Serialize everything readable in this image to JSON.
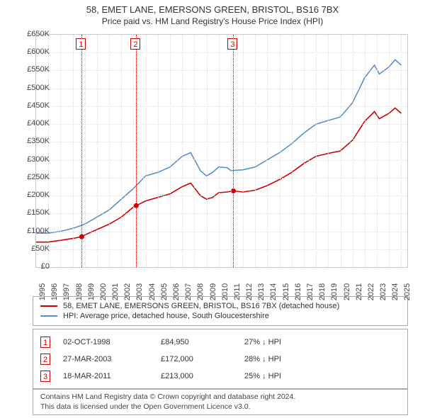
{
  "title_line1": "58, EMET LANE, EMERSONS GREEN, BRISTOL, BS16 7BX",
  "title_line2": "Price paid vs. HM Land Registry's House Price Index (HPI)",
  "chart": {
    "type": "line",
    "background_color": "#ffffff",
    "grid_color": "#dcdcdc",
    "border_color": "#c8c8c8",
    "x": {
      "min": 1995,
      "max": 2025.5,
      "ticks": [
        1995,
        1996,
        1997,
        1998,
        1999,
        2000,
        2001,
        2002,
        2003,
        2004,
        2005,
        2006,
        2007,
        2008,
        2009,
        2010,
        2011,
        2012,
        2013,
        2014,
        2015,
        2016,
        2017,
        2018,
        2019,
        2020,
        2021,
        2022,
        2023,
        2024,
        2025
      ],
      "label_fontsize": 11
    },
    "y": {
      "min": 0,
      "max": 650000,
      "tick_step": 50000,
      "ticks_labels": [
        "£0",
        "£50K",
        "£100K",
        "£150K",
        "£200K",
        "£250K",
        "£300K",
        "£350K",
        "£400K",
        "£450K",
        "£500K",
        "£550K",
        "£600K",
        "£650K"
      ],
      "label_fontsize": 11
    },
    "series": [
      {
        "id": "hpi",
        "color": "#5b8fc7",
        "line_width": 1.6,
        "points": [
          [
            1995,
            95000
          ],
          [
            1996,
            95000
          ],
          [
            1997,
            100000
          ],
          [
            1998,
            108000
          ],
          [
            1999,
            120000
          ],
          [
            2000,
            140000
          ],
          [
            2001,
            160000
          ],
          [
            2002,
            190000
          ],
          [
            2003,
            220000
          ],
          [
            2004,
            255000
          ],
          [
            2005,
            265000
          ],
          [
            2006,
            280000
          ],
          [
            2007,
            310000
          ],
          [
            2007.7,
            320000
          ],
          [
            2008.5,
            270000
          ],
          [
            2009,
            255000
          ],
          [
            2009.5,
            265000
          ],
          [
            2010,
            280000
          ],
          [
            2010.7,
            278000
          ],
          [
            2011,
            270000
          ],
          [
            2012,
            272000
          ],
          [
            2013,
            280000
          ],
          [
            2014,
            300000
          ],
          [
            2015,
            320000
          ],
          [
            2016,
            345000
          ],
          [
            2017,
            375000
          ],
          [
            2018,
            400000
          ],
          [
            2019,
            410000
          ],
          [
            2020,
            420000
          ],
          [
            2021,
            460000
          ],
          [
            2022,
            530000
          ],
          [
            2022.8,
            565000
          ],
          [
            2023.2,
            540000
          ],
          [
            2024,
            560000
          ],
          [
            2024.5,
            580000
          ],
          [
            2025,
            565000
          ]
        ]
      },
      {
        "id": "price_paid",
        "color": "#cc0000",
        "line_width": 1.8,
        "points": [
          [
            1995,
            70000
          ],
          [
            1996,
            70000
          ],
          [
            1997,
            75000
          ],
          [
            1998,
            80000
          ],
          [
            1998.75,
            84950
          ],
          [
            1999,
            90000
          ],
          [
            2000,
            105000
          ],
          [
            2001,
            120000
          ],
          [
            2002,
            140000
          ],
          [
            2003,
            168000
          ],
          [
            2003.23,
            172000
          ],
          [
            2004,
            185000
          ],
          [
            2005,
            195000
          ],
          [
            2006,
            205000
          ],
          [
            2007,
            225000
          ],
          [
            2007.7,
            235000
          ],
          [
            2008.5,
            200000
          ],
          [
            2009,
            190000
          ],
          [
            2009.5,
            195000
          ],
          [
            2010,
            208000
          ],
          [
            2010.7,
            210000
          ],
          [
            2011.21,
            213000
          ],
          [
            2012,
            210000
          ],
          [
            2013,
            215000
          ],
          [
            2014,
            228000
          ],
          [
            2015,
            245000
          ],
          [
            2016,
            265000
          ],
          [
            2017,
            290000
          ],
          [
            2018,
            310000
          ],
          [
            2019,
            318000
          ],
          [
            2020,
            325000
          ],
          [
            2021,
            355000
          ],
          [
            2022,
            408000
          ],
          [
            2022.8,
            435000
          ],
          [
            2023.2,
            415000
          ],
          [
            2024,
            430000
          ],
          [
            2024.5,
            445000
          ],
          [
            2025,
            430000
          ]
        ],
        "dots": [
          {
            "x": 1998.75,
            "y": 84950
          },
          {
            "x": 2003.23,
            "y": 172000
          },
          {
            "x": 2011.21,
            "y": 213000
          }
        ],
        "dot_radius": 3.5
      }
    ],
    "markers": [
      {
        "n": "1",
        "x": 1998.75
      },
      {
        "n": "2",
        "x": 2003.23
      },
      {
        "n": "3",
        "x": 2011.21
      }
    ],
    "marker_color": "#cc0000"
  },
  "legend": {
    "items": [
      {
        "color": "#cc0000",
        "label": "58, EMET LANE, EMERSONS GREEN, BRISTOL, BS16 7BX (detached house)"
      },
      {
        "color": "#5b8fc7",
        "label": "HPI: Average price, detached house, South Gloucestershire"
      }
    ]
  },
  "events": [
    {
      "n": "1",
      "date": "02-OCT-1998",
      "price": "£84,950",
      "pct": "27% ↓ HPI"
    },
    {
      "n": "2",
      "date": "27-MAR-2003",
      "price": "£172,000",
      "pct": "28% ↓ HPI"
    },
    {
      "n": "3",
      "date": "18-MAR-2011",
      "price": "£213,000",
      "pct": "25% ↓ HPI"
    }
  ],
  "attribution_line1": "Contains HM Land Registry data © Crown copyright and database right 2024.",
  "attribution_line2": "This data is licensed under the Open Government Licence v3.0."
}
